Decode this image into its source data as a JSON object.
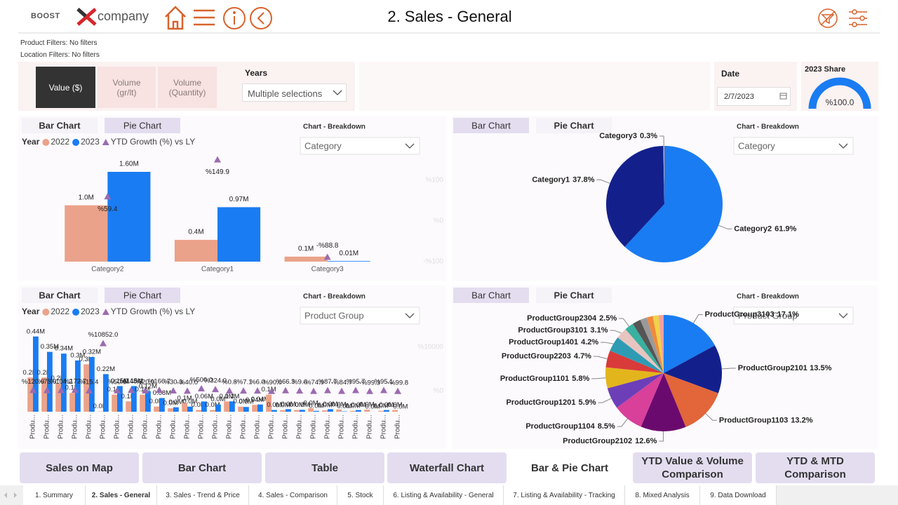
{
  "header": {
    "logo_left": "BOOST",
    "logo_right": "company",
    "title": "2. Sales - General"
  },
  "filters": [
    "Product Filters: No filters",
    "Location Filters: No filters"
  ],
  "measure_buttons": [
    "Value ($)",
    "Volume (gr/lt)",
    "Volume (Quantity)"
  ],
  "years": {
    "label": "Years",
    "value": "Multiple selections"
  },
  "date": {
    "label": "Date",
    "value": "2/7/2023"
  },
  "gauge": {
    "title": "2023 Share",
    "value": 100.0,
    "value_label": "%100.0",
    "color": "#1a7cf2"
  },
  "chart_data": [
    {
      "type": "bar",
      "tabs": [
        "Bar Chart",
        "Pie Chart"
      ],
      "breakdown_label": "Chart - Breakdown",
      "breakdown_value": "Category",
      "legend_title": "Year",
      "categories": [
        "Category2",
        "Category1",
        "Category3"
      ],
      "series": [
        {
          "name": "2022",
          "color": "#eba28a",
          "values": [
            1004000,
            388000,
            89000
          ],
          "value_labels": [
            "1.0M",
            "0.4M",
            "0.1M"
          ]
        },
        {
          "name": "2023",
          "color": "#1a7cf2",
          "values": [
            1600000,
            970000,
            10000
          ],
          "value_labels": [
            "1.60M",
            "0.97M",
            "0.01M"
          ]
        },
        {
          "name": "YTD Growth (%) vs LY",
          "color": "#9b6bb0",
          "axis": "y2",
          "values": [
            59.4,
            149.9,
            -88.8
          ],
          "value_labels": [
            "%59.4",
            "%149.9",
            "-%88.8"
          ]
        }
      ],
      "ylim": [
        0,
        2000000
      ],
      "y2lim": [
        -100,
        175
      ],
      "y2ticks": [
        {
          "value": 100,
          "label": "%100"
        },
        {
          "value": 0,
          "label": "%0"
        },
        {
          "value": -100,
          "label": "-%100"
        }
      ]
    },
    {
      "type": "pie",
      "tabs": [
        "Bar Chart",
        "Pie Chart"
      ],
      "breakdown_label": "Chart - Breakdown",
      "breakdown_value": "Category",
      "categories": [
        "Category2",
        "Category1",
        "Category3"
      ],
      "values": [
        61.9,
        37.8,
        0.3
      ],
      "value_labels": [
        "61.9%",
        "37.8%",
        "0.3%"
      ],
      "colors": [
        "#1a7cf2",
        "#13208c",
        "#eba28a"
      ]
    },
    {
      "type": "bar",
      "tabs": [
        "Bar Chart",
        "Pie Chart"
      ],
      "breakdown_label": "Chart - Breakdown",
      "breakdown_value": "Product Group",
      "legend_title": "Year",
      "categories": [
        "Produ...",
        "Produ...",
        "Produ...",
        "Produ...",
        "Produ...",
        "Produ...",
        "Produ...",
        "Produ...",
        "Produ...",
        "Produ...",
        "Produ...",
        "Produ...",
        "Produ...",
        "Produ...",
        "Produ...",
        "Produ...",
        "Produ...",
        "Produ...",
        "Produ...",
        "Produ...",
        "Produ...",
        "Produ...",
        "Produ...",
        "Produ...",
        "Produ...",
        "Produ...",
        "Produ..."
      ],
      "series": [
        {
          "name": "2022",
          "color": "#eba28a",
          "values": [
            200000,
            200000,
            166600,
            110000,
            277300,
            2000,
            100000,
            60400,
            100000,
            30000,
            20000,
            50000,
            10000,
            10000,
            60000,
            30000,
            40000,
            100000,
            9000,
            10000,
            20000,
            8000,
            13000,
            5000,
            12000,
            5000,
            10000
          ],
          "value_labels": [
            "0.2M",
            "0.2M",
            "0.2M",
            "0.1M",
            "0.3M",
            "0.0M",
            "0.1M",
            "0.1M",
            "0.1M",
            "0.0M",
            "0.0M",
            "0.1M",
            "0.0M",
            "0.0M",
            "0.1M",
            "0.0M",
            "0.04M",
            "0.1M",
            "0.0M",
            "0.0M",
            "0.0M",
            "0.0M",
            "0.0M",
            "0.0M",
            "0.0M",
            "0.0M",
            "0.0M"
          ]
        },
        {
          "name": "2023",
          "color": "#1a7cf2",
          "values": [
            440000,
            350000,
            340000,
            300000,
            320000,
            220000,
            150000,
            150000,
            120000,
            80000,
            26060,
            30000,
            60000,
            42400,
            60500,
            27900,
            42400,
            10000,
            15000,
            10960,
            5000,
            15000,
            2000,
            9800,
            100,
            9800,
            20
          ],
          "value_labels": [
            "0.44M",
            "0.35M",
            "0.34M",
            "0.3M",
            "0.32M",
            "0.22M",
            "0.15M",
            "0.15M",
            "0.12M",
            "0.08M",
            "0.0M",
            "0.0M",
            "0.06M",
            "0.0M",
            "0.1M",
            "0.0M",
            "0.04M",
            "0.0M",
            "0.0M",
            "0.0M",
            "0.0M",
            "0.0M",
            "0.0M",
            "0.0M",
            "0.0M",
            "0.0M",
            "0.0M"
          ]
        },
        {
          "name": "YTD Growth (%) vs LY",
          "color": "#9b6bb0",
          "axis": "y2",
          "values": [
            120.0,
            75.0,
            104.2,
            172.7,
            15.4,
            10852.0,
            50.0,
            148.3,
            20.0,
            166.7,
            30.3,
            -40.0,
            500.0,
            324.0,
            0.8,
            -7.1,
            6.0,
            -90.0,
            66.3,
            9.6,
            -74.9,
            87.7,
            -84.7,
            95.7,
            -99.3,
            95.1,
            -99.8
          ],
          "value_labels": [
            "%120.0",
            "%75.0",
            "%104.2",
            "%172.7",
            "%15.4",
            "%10852.0",
            "%50.0",
            "%148.3",
            "%20.0",
            "%166.7",
            "%30.3",
            "-%40.0",
            "%500.0",
            "%324.0",
            "%0.8",
            "-%7.1",
            "%6.0",
            "-%90.0",
            "%66.3",
            "%9.6",
            "-%74.9",
            "%87.7",
            "-%84.7",
            "%95.7",
            "-%99.3",
            "%95.1",
            "-%99.8"
          ]
        }
      ],
      "ylim": [
        0,
        480000
      ],
      "y2lim": [
        -4800,
        14000
      ],
      "y2ticks": [
        {
          "value": 10000,
          "label": "%10000"
        },
        {
          "value": 0,
          "label": "%0"
        }
      ]
    },
    {
      "type": "pie",
      "tabs": [
        "Bar Chart",
        "Pie Chart"
      ],
      "breakdown_label": "Chart - Breakdown",
      "breakdown_value": "Product Group",
      "categories": [
        "ProductGroup3103",
        "ProductGroup2101",
        "ProductGroup1103",
        "ProductGroup2102",
        "ProductGroup1104",
        "ProductGroup1201",
        "ProductGroup1101",
        "ProductGroup2203",
        "ProductGroup1401",
        "ProductGroup3101",
        "ProductGroup2304",
        null,
        null,
        null,
        null,
        null
      ],
      "values": [
        17.1,
        13.5,
        13.2,
        12.6,
        8.5,
        5.9,
        5.8,
        4.7,
        4.2,
        3.1,
        2.5,
        2.3,
        1.9,
        1.7,
        1.6,
        1.4
      ],
      "value_labels": [
        "17.1%",
        "13.5%",
        "13.2%",
        "12.6%",
        "8.5%",
        "5.9%",
        "5.8%",
        "4.7%",
        "4.2%",
        "3.1%",
        "2.5%",
        null,
        null,
        null,
        null,
        null
      ],
      "colors": [
        "#1a7cf2",
        "#13208c",
        "#e3653a",
        "#6b0a6e",
        "#d8409a",
        "#6c3fb8",
        "#e3b51c",
        "#d93a3a",
        "#2e9bb4",
        "#e8c4c0",
        "#3ab0a0",
        "#555555",
        "#9a9a9a",
        "#f08a3c",
        "#f0d24a",
        "#f4a0a0"
      ]
    }
  ],
  "nav_buttons": [
    "Sales on Map",
    "Bar Chart",
    "Table",
    "Waterfall Chart",
    "Bar & Pie Chart",
    "YTD Value & Volume Comparison",
    "YTD & MTD Comparison"
  ],
  "page_tabs": [
    "1. Summary",
    "2. Sales - General",
    "3. Sales - Trend & Price",
    "4. Sales - Comparison",
    "5. Stock",
    "6. Listing & Availability - General",
    "7. Listing & Availability - Tracking",
    "8. Mixed Analysis",
    "9. Data Download"
  ]
}
